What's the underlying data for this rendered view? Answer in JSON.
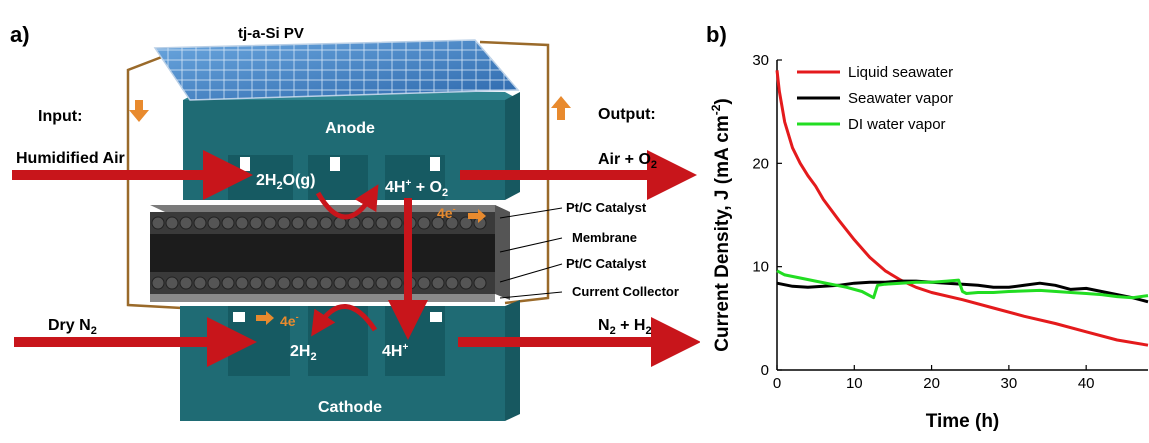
{
  "panel_a": {
    "panel_label": "a)",
    "pv_label": "tj-a-Si PV",
    "input_label": "Input:",
    "output_label": "Output:",
    "anode_label": "Anode",
    "cathode_label": "Cathode",
    "inlet_top": "Humidified Air",
    "outlet_top_main": "Air + O",
    "outlet_top_sub": "2",
    "inlet_bottom_main": "Dry N",
    "inlet_bottom_sub": "2",
    "outlet_bottom_n": "N",
    "outlet_bottom_n_sub": "2",
    "outlet_bottom_h": " + H",
    "outlet_bottom_h_sub": "2",
    "reaction_water": {
      "pre": "2H",
      "sub": "2",
      "post": "O(g)"
    },
    "reaction_oxygen": {
      "pre": "4H",
      "sup": "+",
      "mid": " + O",
      "sub": "2"
    },
    "electrons_top": {
      "main": "4e",
      "sup": "-"
    },
    "electrons_bottom": {
      "main": "4e",
      "sup": "-"
    },
    "reaction_hydrogen": {
      "pre": "2H",
      "sub": "2"
    },
    "protons_bottom": {
      "pre": "4H",
      "sup": "+"
    },
    "layer_labels": [
      "Pt/C Catalyst",
      "Membrane",
      "Pt/C Catalyst",
      "Current Collector"
    ],
    "colors": {
      "block": "#1f6b74",
      "block_dark": "#175860",
      "arrow_red": "#c8151b",
      "electron_orange": "#e88a2e",
      "wire": "#9a6a2a",
      "panel_blue": "#3f7fc4"
    }
  },
  "panel_b": {
    "panel_label": "b)",
    "chart_data": {
      "type": "line",
      "title": "",
      "xlabel": "Time (h)",
      "ylabel": "Current Density, J (mA cm",
      "ylabel_sup": "-2",
      "ylabel_close": ")",
      "xlim": [
        0,
        48
      ],
      "ylim": [
        0,
        30
      ],
      "xticks": [
        0,
        10,
        20,
        30,
        40
      ],
      "yticks": [
        0,
        10,
        20,
        30
      ],
      "grid": false,
      "legend": "top-right",
      "series": [
        {
          "name": "Liquid seawater",
          "color": "#e41a1c",
          "x": [
            0,
            0.3,
            1,
            2,
            3,
            4,
            5,
            6,
            8,
            10,
            12,
            14,
            16,
            18,
            20,
            24,
            28,
            32,
            36,
            40,
            44,
            48
          ],
          "y": [
            29,
            27,
            24,
            21.5,
            20,
            18.8,
            17.8,
            16.5,
            14.5,
            12.6,
            10.9,
            9.6,
            8.7,
            8.0,
            7.5,
            6.8,
            6.0,
            5.2,
            4.5,
            3.7,
            2.9,
            2.4
          ]
        },
        {
          "name": "Seawater vapor",
          "color": "#000000",
          "x": [
            0,
            2,
            4,
            6,
            8,
            10,
            12,
            14,
            16,
            18,
            20,
            22,
            24,
            26,
            28,
            30,
            32,
            34,
            36,
            38,
            40,
            42,
            44,
            46,
            48
          ],
          "y": [
            8.4,
            8.1,
            8.0,
            8.1,
            8.2,
            8.4,
            8.5,
            8.5,
            8.6,
            8.6,
            8.5,
            8.4,
            8.3,
            8.2,
            8.0,
            8.0,
            8.2,
            8.4,
            8.2,
            7.8,
            7.9,
            7.6,
            7.3,
            7.0,
            6.6
          ]
        },
        {
          "name": "DI water vapor",
          "color": "#22dd22",
          "x": [
            0,
            1,
            3,
            5,
            7,
            9,
            11,
            12.5,
            13,
            14,
            16,
            18,
            20,
            22,
            23.5,
            24,
            24.5,
            26,
            28,
            30,
            34,
            38,
            40,
            42,
            44,
            46,
            48
          ],
          "y": [
            9.6,
            9.2,
            8.9,
            8.6,
            8.3,
            8.0,
            7.6,
            7.0,
            8.2,
            8.3,
            8.4,
            8.5,
            8.5,
            8.6,
            8.7,
            7.6,
            7.4,
            7.5,
            7.5,
            7.6,
            7.7,
            7.5,
            7.4,
            7.3,
            7.1,
            7.0,
            7.2
          ]
        }
      ]
    }
  }
}
